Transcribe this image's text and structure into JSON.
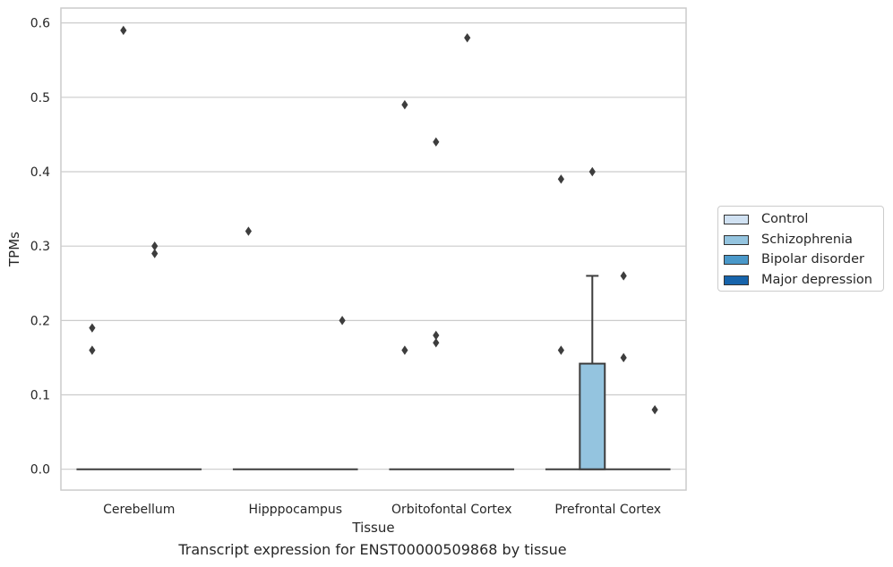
{
  "chart_data": {
    "type": "box",
    "caption": "Transcript expression for ENST00000509868 by tissue",
    "xlabel": "Tissue",
    "ylabel": "TPMs",
    "ylim": [
      -0.028,
      0.62
    ],
    "yticks": [
      0.0,
      0.1,
      0.2,
      0.3,
      0.4,
      0.5,
      0.6
    ],
    "ytick_labels": [
      "0.0",
      "0.1",
      "0.2",
      "0.3",
      "0.4",
      "0.5",
      "0.6"
    ],
    "grid": true,
    "legend_position": "right",
    "categories": [
      "Cerebellum",
      "Hipppocampus",
      "Orbitofontal Cortex",
      "Prefrontal Cortex"
    ],
    "series": [
      {
        "name": "Control",
        "color": "#d0e1f2"
      },
      {
        "name": "Schizophrenia",
        "color": "#94c4df"
      },
      {
        "name": "Bipolar disorder",
        "color": "#4a98c9"
      },
      {
        "name": "Major depression",
        "color": "#1764ab"
      }
    ],
    "boxes": [
      {
        "category": "Prefrontal Cortex",
        "series": "Schizophrenia",
        "q1": 0.0,
        "median": 0.0,
        "q3": 0.142,
        "whisker_low": 0.0,
        "whisker_high": 0.26
      }
    ],
    "medians": [
      {
        "category": "Cerebellum",
        "value": 0.0
      },
      {
        "category": "Hipppocampus",
        "value": 0.0
      },
      {
        "category": "Orbitofontal Cortex",
        "value": 0.0
      },
      {
        "category": "Prefrontal Cortex",
        "value": 0.0
      }
    ],
    "outliers": [
      {
        "category": "Cerebellum",
        "series": "Control",
        "value": 0.19
      },
      {
        "category": "Cerebellum",
        "series": "Control",
        "value": 0.16
      },
      {
        "category": "Cerebellum",
        "series": "Schizophrenia",
        "value": 0.59
      },
      {
        "category": "Cerebellum",
        "series": "Bipolar disorder",
        "value": 0.3
      },
      {
        "category": "Cerebellum",
        "series": "Bipolar disorder",
        "value": 0.29
      },
      {
        "category": "Hipppocampus",
        "series": "Control",
        "value": 0.32
      },
      {
        "category": "Hipppocampus",
        "series": "Major depression",
        "value": 0.2
      },
      {
        "category": "Orbitofontal Cortex",
        "series": "Control",
        "value": 0.49
      },
      {
        "category": "Orbitofontal Cortex",
        "series": "Control",
        "value": 0.16
      },
      {
        "category": "Orbitofontal Cortex",
        "series": "Schizophrenia",
        "value": 0.44
      },
      {
        "category": "Orbitofontal Cortex",
        "series": "Schizophrenia",
        "value": 0.18
      },
      {
        "category": "Orbitofontal Cortex",
        "series": "Schizophrenia",
        "value": 0.17
      },
      {
        "category": "Orbitofontal Cortex",
        "series": "Bipolar disorder",
        "value": 0.58
      },
      {
        "category": "Prefrontal Cortex",
        "series": "Control",
        "value": 0.39
      },
      {
        "category": "Prefrontal Cortex",
        "series": "Control",
        "value": 0.16
      },
      {
        "category": "Prefrontal Cortex",
        "series": "Schizophrenia",
        "value": 0.4
      },
      {
        "category": "Prefrontal Cortex",
        "series": "Bipolar disorder",
        "value": 0.26
      },
      {
        "category": "Prefrontal Cortex",
        "series": "Bipolar disorder",
        "value": 0.15
      },
      {
        "category": "Prefrontal Cortex",
        "series": "Major depression",
        "value": 0.08
      }
    ]
  }
}
